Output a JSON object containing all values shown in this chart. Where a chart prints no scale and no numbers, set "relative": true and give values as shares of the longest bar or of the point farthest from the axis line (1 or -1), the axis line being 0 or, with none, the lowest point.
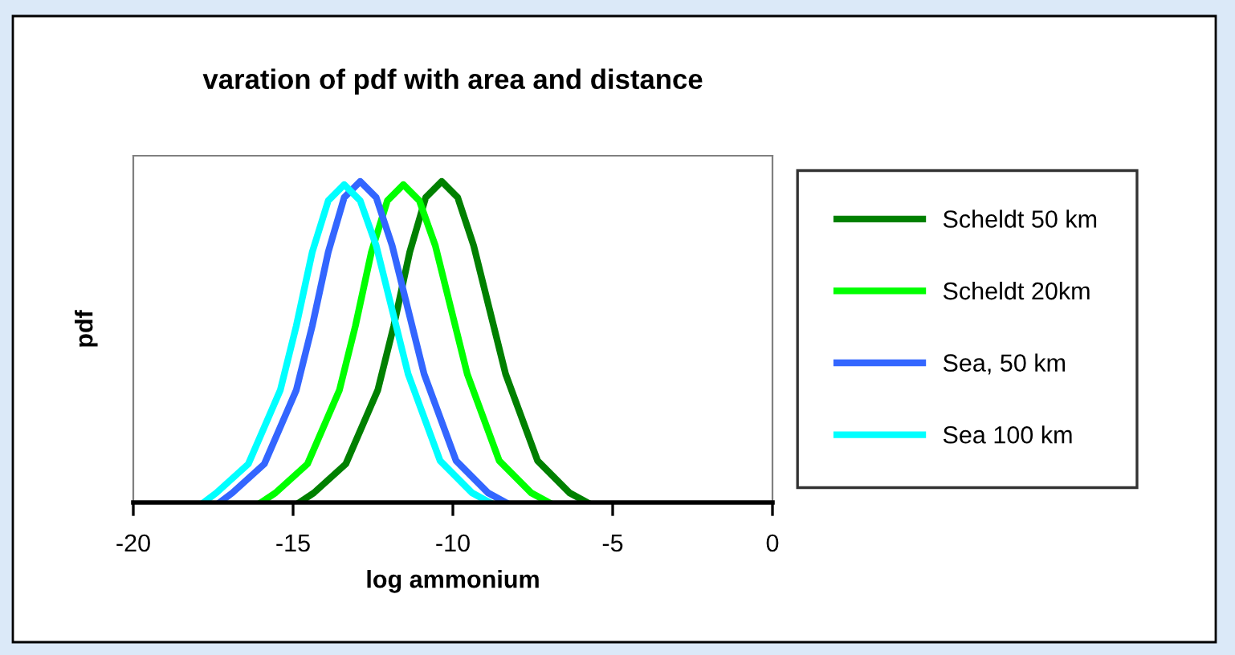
{
  "chart_data": {
    "type": "line",
    "title": "varation of pdf with area and distance",
    "xlabel": "log ammonium",
    "ylabel": "pdf",
    "relative": true,
    "xlim": [
      -20,
      0
    ],
    "xticks": [
      -20,
      -15,
      -10,
      -5,
      0
    ],
    "legend": "right",
    "grid": false,
    "marker": "none",
    "line_style": "solid",
    "series": [
      {
        "name": "Scheldt 50 km",
        "color": "#008000",
        "x": [
          -14.8,
          -14.35,
          -13.35,
          -12.35,
          -11.85,
          -11.35,
          -10.85,
          -10.35,
          -9.85,
          -9.35,
          -8.85,
          -8.35,
          -7.35,
          -6.35,
          -5.8
        ],
        "values": [
          0,
          0.03,
          0.12,
          0.35,
          0.55,
          0.78,
          0.95,
          1,
          0.95,
          0.8,
          0.6,
          0.4,
          0.13,
          0.03,
          0
        ]
      },
      {
        "name": "Scheldt 20km",
        "color": "#00ff00",
        "x": [
          -16.0,
          -15.55,
          -14.55,
          -13.55,
          -13.05,
          -12.55,
          -12.05,
          -11.55,
          -11.05,
          -10.55,
          -10.05,
          -9.55,
          -8.55,
          -7.55,
          -7.0
        ],
        "values": [
          0,
          0.03,
          0.12,
          0.35,
          0.55,
          0.78,
          0.94,
          0.99,
          0.94,
          0.8,
          0.6,
          0.4,
          0.13,
          0.03,
          0
        ]
      },
      {
        "name": "Sea, 50 km",
        "color": "#3366ff",
        "x": [
          -17.3,
          -16.9,
          -15.9,
          -14.9,
          -14.4,
          -13.9,
          -13.4,
          -12.9,
          -12.4,
          -11.9,
          -11.4,
          -10.9,
          -9.9,
          -8.9,
          -8.35
        ],
        "values": [
          0,
          0.03,
          0.12,
          0.35,
          0.55,
          0.78,
          0.95,
          1,
          0.95,
          0.8,
          0.6,
          0.4,
          0.13,
          0.03,
          0
        ]
      },
      {
        "name": "Sea 100 km",
        "color": "#00ffff",
        "x": [
          -17.8,
          -17.4,
          -16.4,
          -15.4,
          -14.9,
          -14.4,
          -13.9,
          -13.4,
          -12.9,
          -12.4,
          -11.9,
          -11.4,
          -10.4,
          -9.4,
          -8.85
        ],
        "values": [
          0,
          0.03,
          0.12,
          0.35,
          0.55,
          0.78,
          0.94,
          0.99,
          0.94,
          0.8,
          0.6,
          0.4,
          0.13,
          0.03,
          0
        ]
      }
    ]
  }
}
